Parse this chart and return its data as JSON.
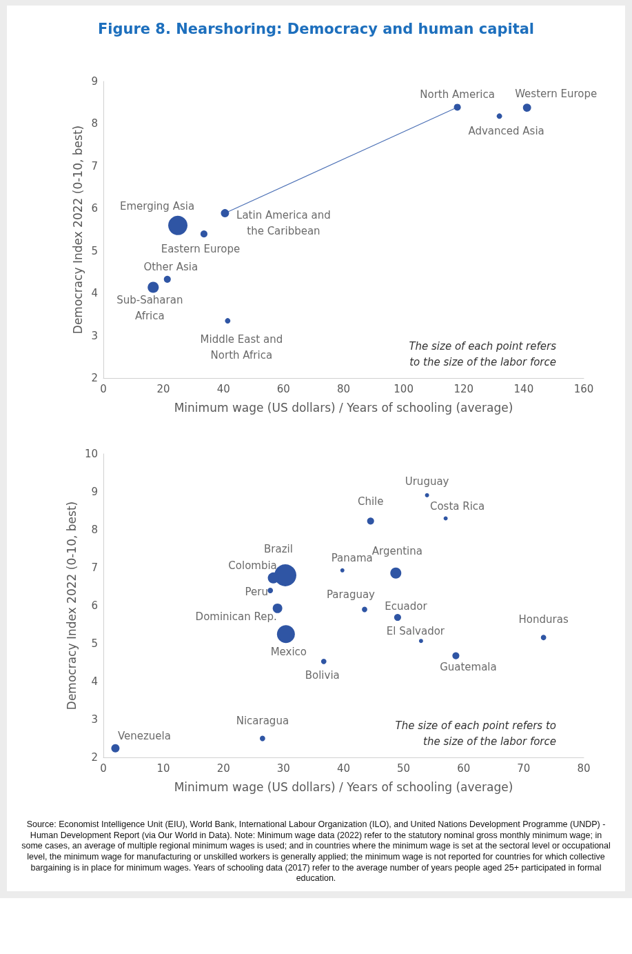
{
  "chart_data": [
    {
      "type": "bubble",
      "title": "Figure 8. Nearshoring: Democracy and human capital",
      "xlabel": "Minimum wage (US dollars) / Years of schooling (average)",
      "ylabel": "Democracy Index 2022 (0-10, best)",
      "xlim": [
        0,
        160
      ],
      "xticks": [
        0,
        20,
        40,
        60,
        80,
        100,
        120,
        140,
        160
      ],
      "ylim": [
        2,
        9
      ],
      "yticks": [
        2,
        3,
        4,
        5,
        6,
        7,
        8,
        9
      ],
      "grid": false,
      "series": [
        {
          "color": "#2f55a4",
          "x": [
            117.9,
            141.1,
            131.9,
            40.5,
            24.8,
            33.5,
            21.3,
            16.6,
            41.4
          ],
          "values": [
            8.39,
            8.38,
            8.18,
            5.89,
            5.6,
            5.4,
            4.33,
            4.14,
            3.35
          ],
          "sizes": [
            0.13,
            0.18,
            0.08,
            0.18,
            1,
            0.13,
            0.13,
            0.33,
            0.08
          ]
        },
        {
          "type": "line",
          "color": "#4a6fb5",
          "x": [
            40.5,
            117.9
          ],
          "values": [
            5.89,
            8.39
          ],
          "line_style": "solid"
        }
      ],
      "annotations": [
        {
          "text": "North America",
          "x": 117.9,
          "y": 8.39
        },
        {
          "text": "Western Europe",
          "x": 141.1,
          "y": 8.38
        },
        {
          "text": "Advanced Asia",
          "x": 131.9,
          "y": 8.18
        },
        {
          "text": "Latin America and\nthe Caribbean",
          "x": 40.5,
          "y": 5.89
        },
        {
          "text": "Emerging Asia",
          "x": 24.8,
          "y": 5.6
        },
        {
          "text": "Eastern Europe",
          "x": 33.5,
          "y": 5.4
        },
        {
          "text": "Other Asia",
          "x": 21.3,
          "y": 4.33
        },
        {
          "text": "Sub-Saharan\nAfrica",
          "x": 16.6,
          "y": 4.14
        },
        {
          "text": "Middle East and\nNorth Africa",
          "x": 41.4,
          "y": 3.35
        },
        "The size of each point refers\nto the size of the labor force"
      ]
    },
    {
      "type": "bubble",
      "xlabel": "Minimum wage (US dollars) / Years of schooling (average)",
      "ylabel": "Democracy Index 2022 (0-10, best)",
      "xlim": [
        0,
        80
      ],
      "xticks": [
        0,
        10,
        20,
        30,
        40,
        50,
        60,
        70,
        80
      ],
      "ylim": [
        2,
        10
      ],
      "yticks": [
        2,
        3,
        4,
        5,
        6,
        7,
        8,
        9,
        10
      ],
      "grid": false,
      "series": [
        {
          "color": "#2f55a4",
          "x": [
            53.9,
            57.0,
            44.5,
            39.8,
            48.7,
            30.3,
            28.3,
            27.8,
            29.0,
            43.5,
            49.0,
            73.3,
            30.4,
            52.9,
            58.7,
            36.7,
            26.5,
            2.0
          ],
          "values": [
            8.91,
            8.3,
            8.23,
            6.93,
            6.86,
            6.8,
            6.73,
            6.4,
            5.93,
            5.9,
            5.69,
            5.16,
            5.25,
            5.07,
            4.68,
            4.53,
            2.5,
            2.24
          ],
          "sizes": [
            0.035,
            0.035,
            0.1,
            0.035,
            0.25,
            1,
            0.25,
            0.06,
            0.19,
            0.06,
            0.1,
            0.06,
            0.66,
            0.035,
            0.1,
            0.06,
            0.06,
            0.14
          ]
        }
      ],
      "annotations": [
        {
          "text": "Uruguay",
          "x": 53.9,
          "y": 8.91
        },
        {
          "text": "Costa Rica",
          "x": 57.0,
          "y": 8.3
        },
        {
          "text": "Chile",
          "x": 44.5,
          "y": 8.23
        },
        {
          "text": "Panama",
          "x": 39.8,
          "y": 6.93
        },
        {
          "text": "Argentina",
          "x": 48.7,
          "y": 6.86
        },
        {
          "text": "Brazil",
          "x": 30.3,
          "y": 6.8
        },
        {
          "text": "Colombia",
          "x": 28.3,
          "y": 6.73
        },
        {
          "text": "Peru",
          "x": 27.8,
          "y": 6.4
        },
        {
          "text": "Dominican Rep.",
          "x": 29.0,
          "y": 5.93
        },
        {
          "text": "Paraguay",
          "x": 43.5,
          "y": 5.9
        },
        {
          "text": "Ecuador",
          "x": 49.0,
          "y": 5.69
        },
        {
          "text": "Honduras",
          "x": 73.3,
          "y": 5.16
        },
        {
          "text": "Mexico",
          "x": 30.4,
          "y": 5.25
        },
        {
          "text": "El Salvador",
          "x": 52.9,
          "y": 5.07
        },
        {
          "text": "Guatemala",
          "x": 58.7,
          "y": 4.68
        },
        {
          "text": "Bolivia",
          "x": 36.7,
          "y": 4.53
        },
        {
          "text": "Nicaragua",
          "x": 26.5,
          "y": 2.5
        },
        {
          "text": "Venezuela",
          "x": 2.0,
          "y": 2.24
        },
        "The size of each point refers to\nthe size of the labor force",
        "Source: Economist Intelligence Unit (EIU), World Bank, International Labour Organization (ILO), and United Nations Development Programme (UNDP) - Human Development Report (via Our World in Data). Note: Minimum wage data (2022) refer to the statutory nominal gross monthly minimum wage; in some cases, an average of multiple regional minimum wages is used; and in countries where the minimum wage is set at the sectoral level or occupational level, the minimum wage for manufacturing or unskilled workers is generally applied; the minimum wage is not reported for countries for which collective bargaining is in place for minimum wages. Years of schooling data (2017) refer to the average number of years people aged 25+ participated in formal education."
      ]
    }
  ]
}
